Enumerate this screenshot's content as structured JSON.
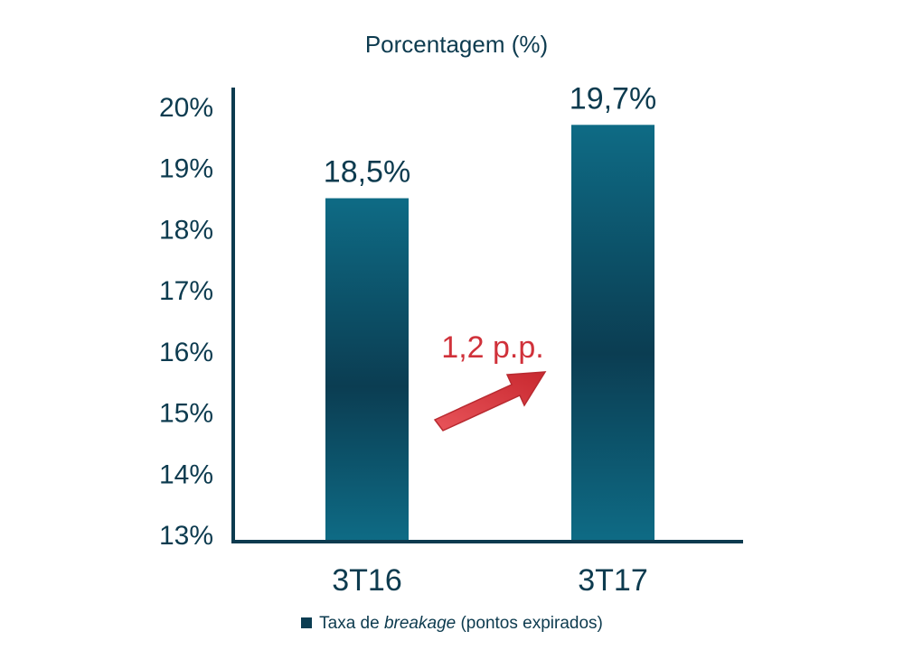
{
  "chart_data": {
    "type": "bar",
    "title": "Porcentagem (%)",
    "categories": [
      "3T16",
      "3T17"
    ],
    "values": [
      18.5,
      19.7
    ],
    "value_labels": [
      "18,5%",
      "19,7%"
    ],
    "ylim": [
      13,
      20
    ],
    "yticks": [
      13,
      14,
      15,
      16,
      17,
      18,
      19,
      20
    ],
    "ytick_labels": [
      "13%",
      "14%",
      "15%",
      "16%",
      "17%",
      "18%",
      "19%",
      "20%"
    ],
    "grid": false,
    "legend": {
      "position": "bottom",
      "prefix": "Taxa de ",
      "emphasis": "breakage",
      "suffix": " (pontos expirados)"
    },
    "annotation": {
      "text": "1,2 p.p.",
      "color": "#d0313a"
    },
    "colors": {
      "bar_light": "#0e6b85",
      "bar_dark": "#0b3d52",
      "axis": "#0d3b4f",
      "text": "#0d3b4f"
    }
  }
}
